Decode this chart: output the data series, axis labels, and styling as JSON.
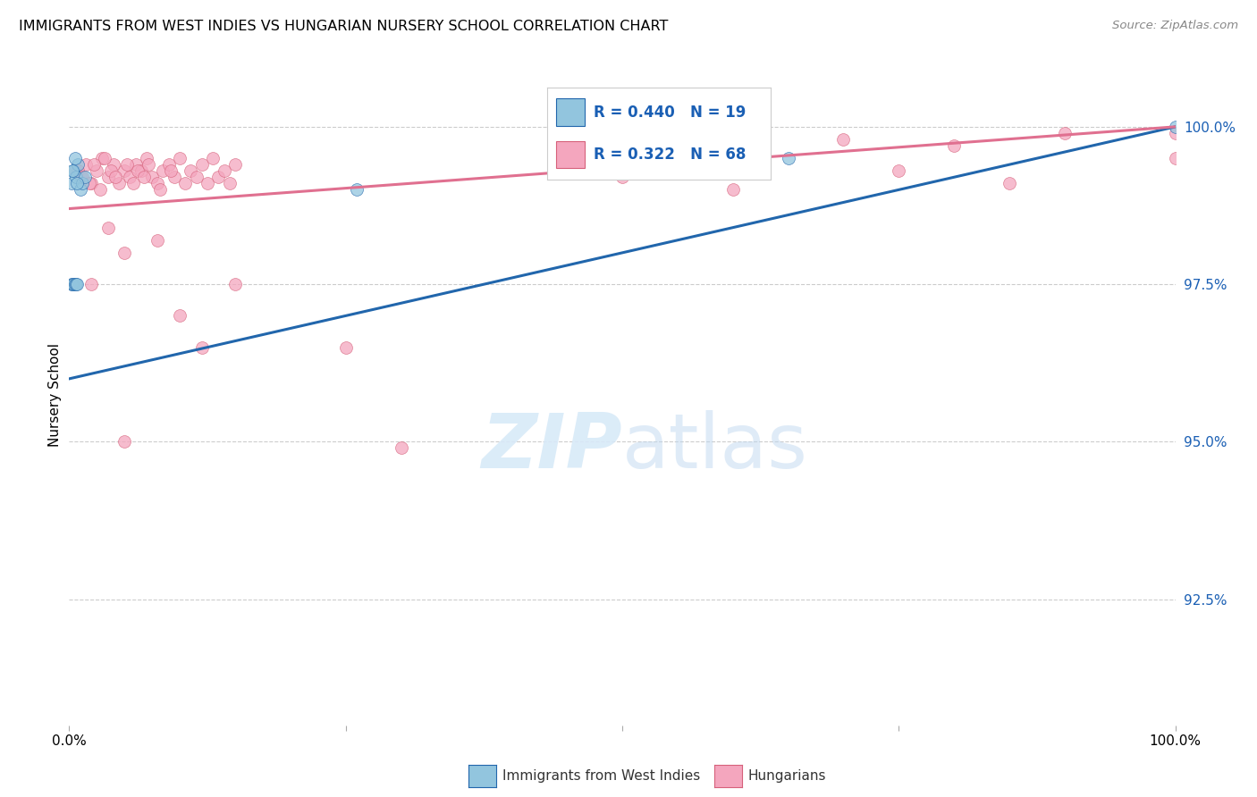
{
  "title": "IMMIGRANTS FROM WEST INDIES VS HUNGARIAN NURSERY SCHOOL CORRELATION CHART",
  "source": "Source: ZipAtlas.com",
  "ylabel": "Nursery School",
  "legend_blue_label": "Immigrants from West Indies",
  "legend_pink_label": "Hungarians",
  "blue_color": "#92c5de",
  "pink_color": "#f4a6be",
  "blue_edge_color": "#2166ac",
  "pink_edge_color": "#d6607a",
  "blue_line_color": "#2166ac",
  "pink_line_color": "#e07090",
  "legend_text_color": "#1a5fb4",
  "y_ticks": [
    92.5,
    95.0,
    97.5,
    100.0
  ],
  "ylim": [
    90.5,
    101.0
  ],
  "xlim": [
    0.0,
    100.0
  ],
  "blue_x": [
    0.2,
    0.4,
    0.6,
    0.8,
    1.0,
    1.2,
    1.4,
    0.3,
    0.5,
    0.7,
    0.2,
    0.3,
    0.4,
    0.5,
    0.6,
    0.7,
    26.0,
    65.0,
    100.0
  ],
  "blue_y": [
    99.1,
    99.3,
    99.2,
    99.4,
    99.0,
    99.1,
    99.2,
    99.3,
    99.5,
    99.1,
    97.5,
    97.5,
    97.5,
    97.5,
    97.5,
    97.5,
    99.0,
    99.5,
    100.0
  ],
  "pink_x": [
    0.5,
    1.0,
    1.5,
    2.0,
    2.5,
    3.0,
    3.5,
    4.0,
    4.5,
    5.0,
    5.5,
    6.0,
    6.5,
    7.0,
    7.5,
    8.0,
    8.5,
    9.0,
    9.5,
    10.0,
    10.5,
    11.0,
    11.5,
    12.0,
    12.5,
    13.0,
    13.5,
    14.0,
    14.5,
    15.0,
    0.8,
    1.2,
    1.8,
    2.2,
    2.8,
    3.2,
    3.8,
    4.2,
    5.2,
    5.8,
    6.2,
    6.8,
    7.2,
    8.2,
    9.2,
    60.0,
    70.0,
    80.0,
    90.0,
    100.0,
    3.5,
    8.0,
    5.0,
    15.0,
    2.0,
    10.0,
    12.0,
    25.0,
    5.0,
    30.0,
    50.0,
    100.0,
    60.0,
    75.0,
    85.0
  ],
  "pink_y": [
    99.3,
    99.2,
    99.4,
    99.1,
    99.3,
    99.5,
    99.2,
    99.4,
    99.1,
    99.3,
    99.2,
    99.4,
    99.3,
    99.5,
    99.2,
    99.1,
    99.3,
    99.4,
    99.2,
    99.5,
    99.1,
    99.3,
    99.2,
    99.4,
    99.1,
    99.5,
    99.2,
    99.3,
    99.1,
    99.4,
    99.3,
    99.2,
    99.1,
    99.4,
    99.0,
    99.5,
    99.3,
    99.2,
    99.4,
    99.1,
    99.3,
    99.2,
    99.4,
    99.0,
    99.3,
    99.9,
    99.8,
    99.7,
    99.9,
    99.9,
    98.4,
    98.2,
    98.0,
    97.5,
    97.5,
    97.0,
    96.5,
    96.5,
    95.0,
    94.9,
    99.2,
    99.5,
    99.0,
    99.3,
    99.1
  ]
}
